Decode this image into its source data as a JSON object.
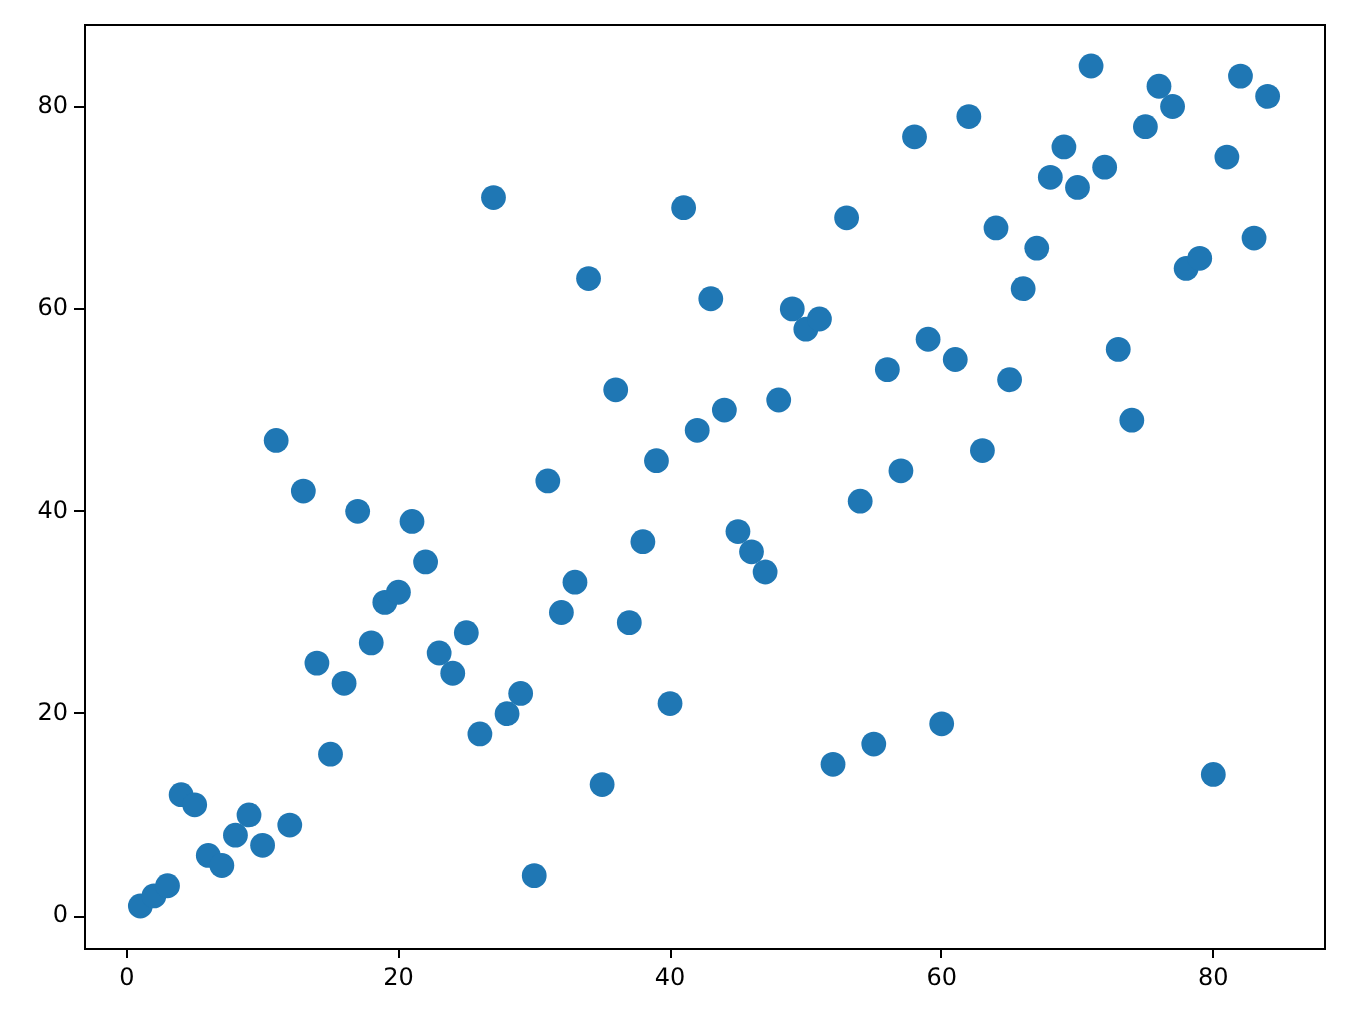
{
  "chart_data": {
    "type": "scatter",
    "x": [
      1,
      2,
      3,
      4,
      5,
      6,
      7,
      8,
      9,
      10,
      11,
      12,
      13,
      14,
      15,
      16,
      17,
      18,
      19,
      20,
      21,
      22,
      23,
      24,
      25,
      26,
      27,
      28,
      29,
      30,
      31,
      32,
      33,
      34,
      35,
      36,
      37,
      38,
      39,
      40,
      41,
      42,
      43,
      44,
      45,
      46,
      47,
      48,
      49,
      50,
      51,
      52,
      53,
      54,
      55,
      56,
      57,
      58,
      59,
      60,
      61,
      62,
      63,
      64,
      65,
      66,
      67,
      68,
      69,
      70,
      71,
      72,
      73,
      74,
      75,
      76,
      77,
      78,
      79,
      80,
      81,
      82,
      83,
      84
    ],
    "values": [
      1,
      2,
      3,
      12,
      11,
      6,
      5,
      8,
      10,
      7,
      47,
      9,
      42,
      25,
      16,
      23,
      40,
      27,
      31,
      32,
      39,
      35,
      26,
      24,
      28,
      18,
      71,
      20,
      22,
      4,
      43,
      30,
      33,
      63,
      13,
      52,
      29,
      37,
      45,
      21,
      70,
      48,
      61,
      50,
      38,
      36,
      34,
      51,
      60,
      58,
      59,
      15,
      69,
      41,
      17,
      54,
      44,
      77,
      57,
      19,
      55,
      79,
      46,
      68,
      53,
      62,
      66,
      73,
      76,
      72,
      84,
      74,
      56,
      49,
      78,
      82,
      80,
      64,
      65,
      14,
      75,
      83,
      67,
      81
    ],
    "color": "#1f77b4",
    "marker": "circle",
    "xlim": [
      -3.15,
      88.15
    ],
    "ylim": [
      -3.15,
      88.15
    ],
    "xticks": [
      0,
      20,
      40,
      60,
      80
    ],
    "yticks": [
      0,
      20,
      40,
      60,
      80
    ]
  }
}
